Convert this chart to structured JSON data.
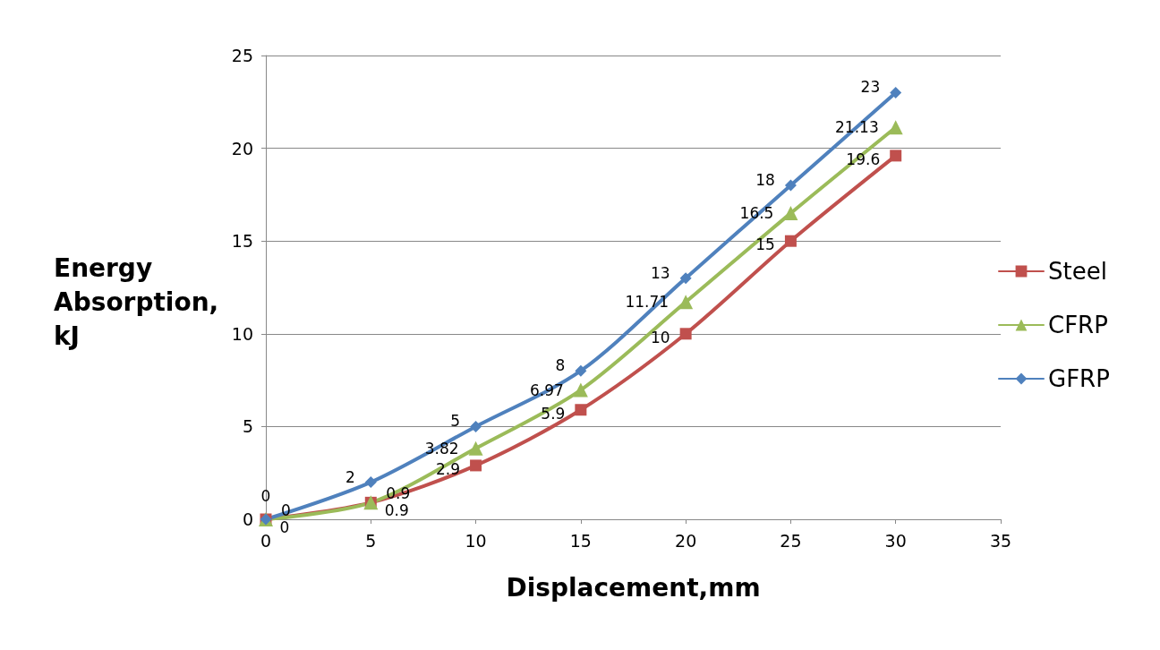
{
  "chart_data": {
    "type": "line",
    "xlabel": "Displacement,mm",
    "ylabel": "Energy Absorption,kJ",
    "x": [
      0,
      5,
      10,
      15,
      20,
      25,
      30
    ],
    "series": [
      {
        "name": "Steel",
        "color": "#c0504d",
        "marker": "square",
        "values": [
          0,
          0.9,
          2.9,
          5.9,
          10,
          15,
          19.6
        ]
      },
      {
        "name": "CFRP",
        "color": "#9bbb59",
        "marker": "triangle",
        "values": [
          0,
          0.9,
          3.82,
          6.97,
          11.71,
          16.5,
          21.13
        ]
      },
      {
        "name": "GFRP",
        "color": "#4f81bd",
        "marker": "diamond",
        "values": [
          0,
          2,
          5,
          8,
          13,
          18,
          23
        ]
      }
    ],
    "xlim": [
      0,
      35
    ],
    "xticks": [
      0,
      5,
      10,
      15,
      20,
      25,
      30,
      35
    ],
    "ylim": [
      0,
      25
    ],
    "yticks": [
      0,
      5,
      10,
      15,
      20,
      25
    ],
    "grid": "y",
    "legend": "right",
    "data_labels": true,
    "line_style": "solid"
  }
}
